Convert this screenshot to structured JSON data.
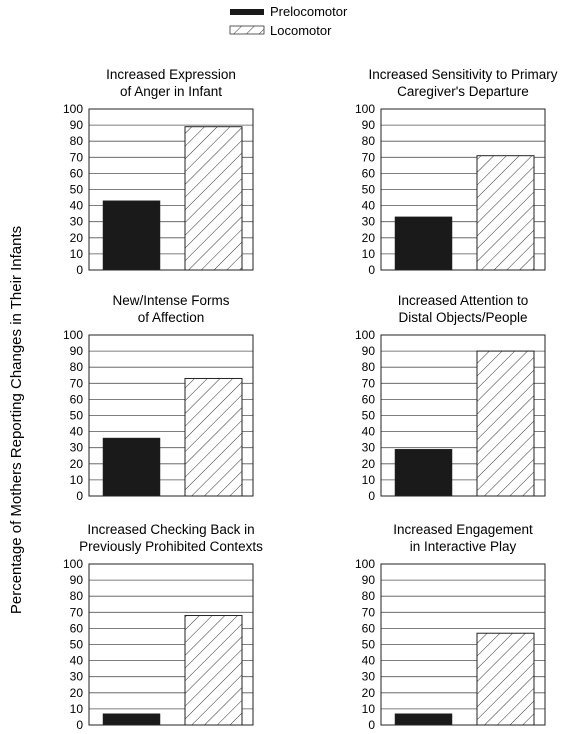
{
  "figure": {
    "ylabel": "Percentage of Mothers Reporting Changes in Their Infants"
  },
  "legend": [
    {
      "name": "Prelocomotor",
      "style": "solid",
      "color": "#1a1a1a"
    },
    {
      "name": "Locomotor",
      "style": "hatched",
      "color": "#ffffff"
    }
  ],
  "chart_data": [
    {
      "type": "bar",
      "title_lines": [
        "Increased Expression",
        "of Anger in Infant"
      ],
      "categories": [
        "Prelocomotor",
        "Locomotor"
      ],
      "values": [
        43,
        89
      ],
      "ylim": [
        0,
        100
      ],
      "yticks": [
        0,
        10,
        20,
        30,
        40,
        50,
        60,
        70,
        80,
        90,
        100
      ],
      "grid": true
    },
    {
      "type": "bar",
      "title_lines": [
        "Increased Sensitivity to Primary",
        "Caregiver's Departure"
      ],
      "categories": [
        "Prelocomotor",
        "Locomotor"
      ],
      "values": [
        33,
        71
      ],
      "ylim": [
        0,
        100
      ],
      "yticks": [
        0,
        10,
        20,
        30,
        40,
        50,
        60,
        70,
        80,
        90,
        100
      ],
      "grid": true
    },
    {
      "type": "bar",
      "title_lines": [
        "New/Intense Forms",
        "of Affection"
      ],
      "categories": [
        "Prelocomotor",
        "Locomotor"
      ],
      "values": [
        36,
        73
      ],
      "ylim": [
        0,
        100
      ],
      "yticks": [
        0,
        10,
        20,
        30,
        40,
        50,
        60,
        70,
        80,
        90,
        100
      ],
      "grid": true
    },
    {
      "type": "bar",
      "title_lines": [
        "Increased Attention to",
        "Distal Objects/People"
      ],
      "categories": [
        "Prelocomotor",
        "Locomotor"
      ],
      "values": [
        29,
        90
      ],
      "ylim": [
        0,
        100
      ],
      "yticks": [
        0,
        10,
        20,
        30,
        40,
        50,
        60,
        70,
        80,
        90,
        100
      ],
      "grid": true
    },
    {
      "type": "bar",
      "title_lines": [
        "Increased Checking Back in",
        "Previously Prohibited Contexts"
      ],
      "categories": [
        "Prelocomotor",
        "Locomotor"
      ],
      "values": [
        7,
        68
      ],
      "ylim": [
        0,
        100
      ],
      "yticks": [
        0,
        10,
        20,
        30,
        40,
        50,
        60,
        70,
        80,
        90,
        100
      ],
      "grid": true
    },
    {
      "type": "bar",
      "title_lines": [
        "Increased Engagement",
        "in Interactive Play"
      ],
      "categories": [
        "Prelocomotor",
        "Locomotor"
      ],
      "values": [
        7,
        57
      ],
      "ylim": [
        0,
        100
      ],
      "yticks": [
        0,
        10,
        20,
        30,
        40,
        50,
        60,
        70,
        80,
        90,
        100
      ],
      "grid": true
    }
  ]
}
